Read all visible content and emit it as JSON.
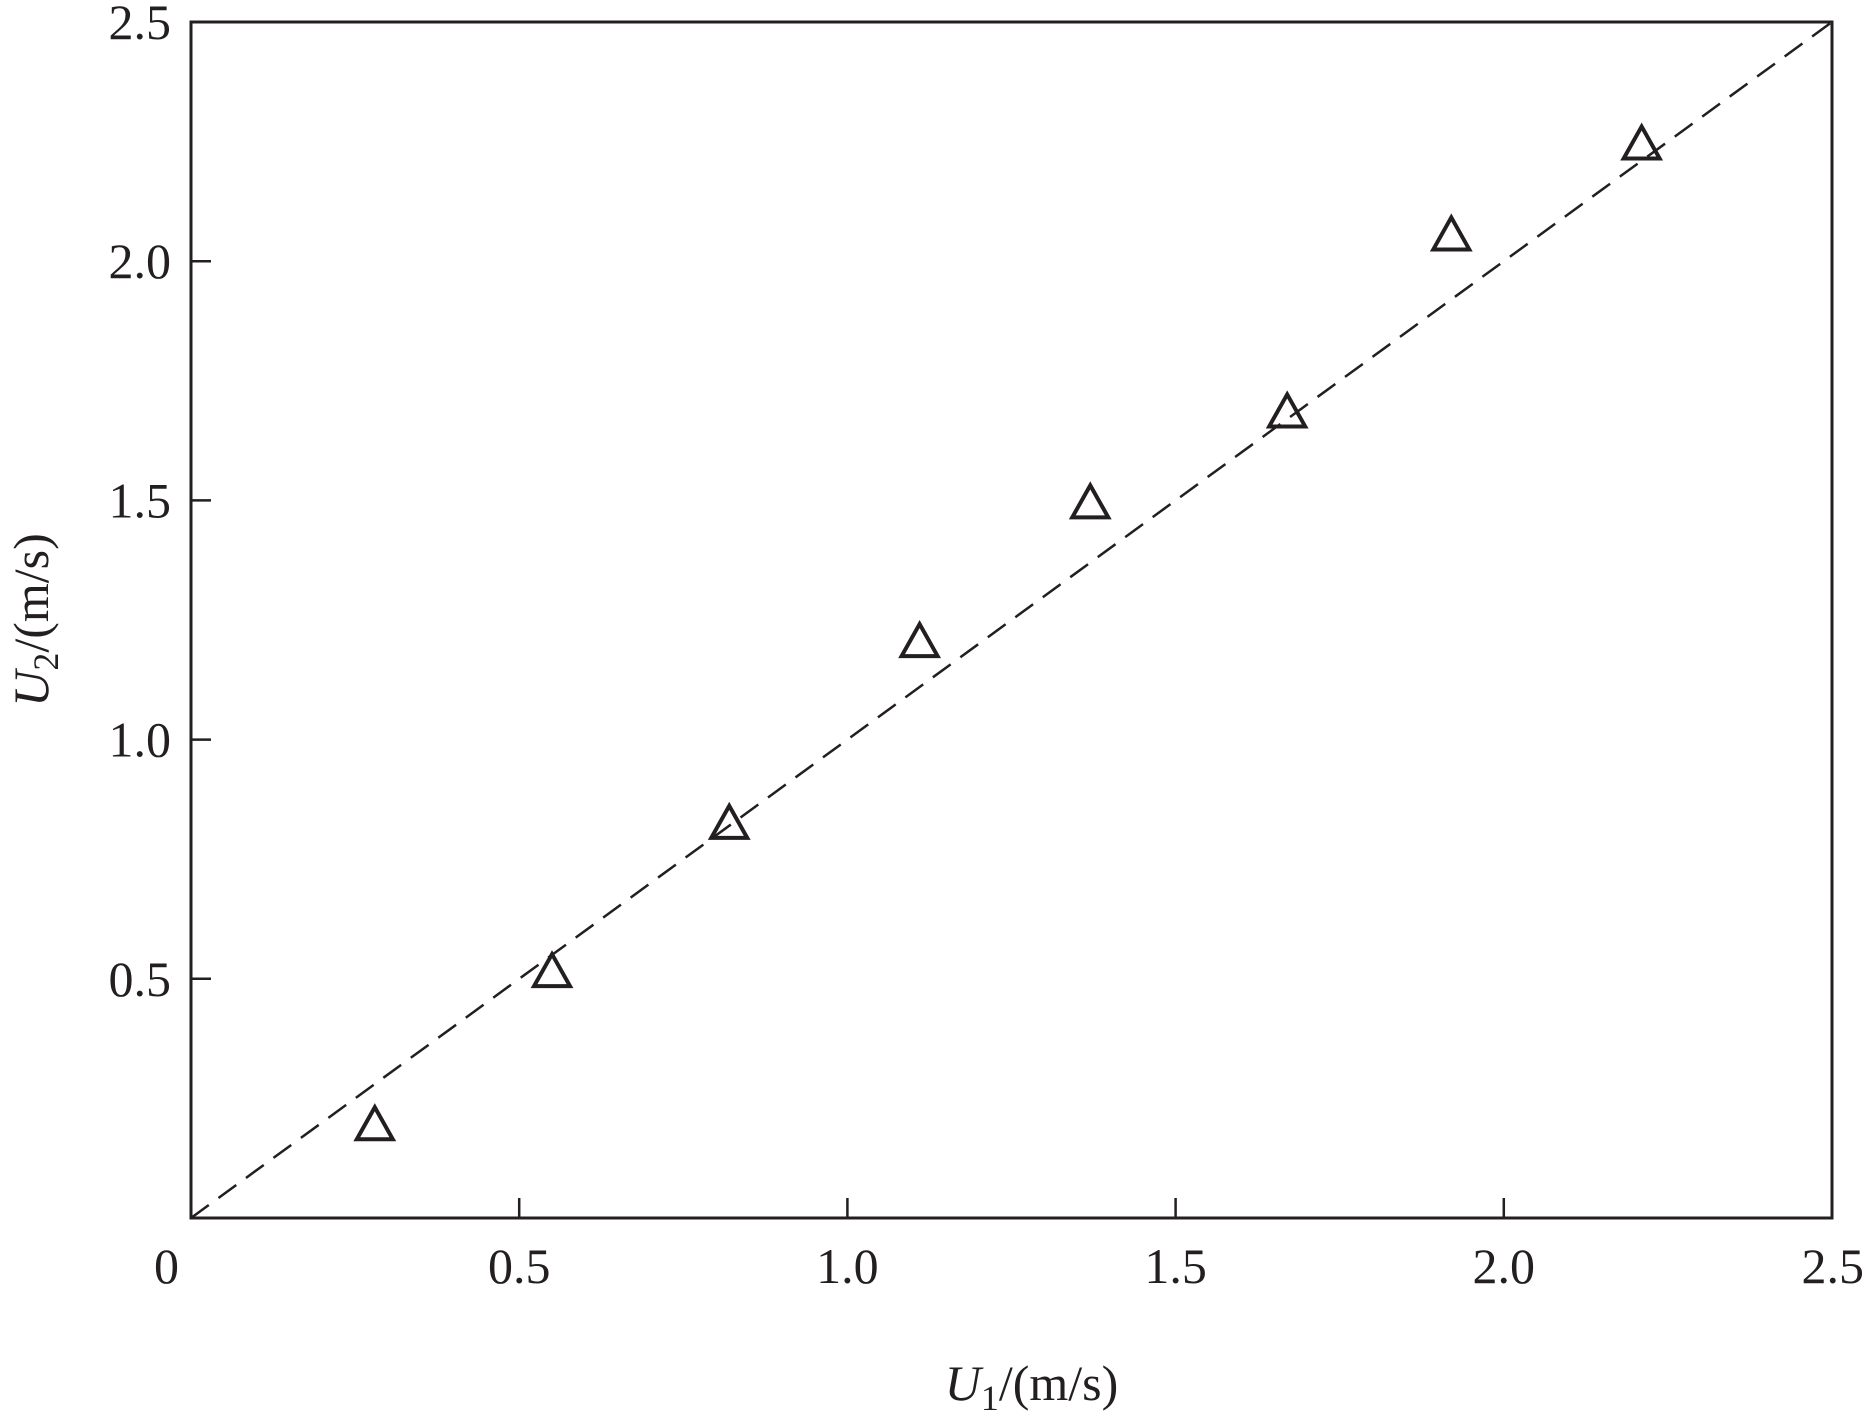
{
  "chart_data": {
    "type": "scatter",
    "title": "",
    "xlabel": {
      "symbol": "U",
      "subscript": "1",
      "unit": "/(m/s)"
    },
    "ylabel": {
      "symbol": "U",
      "subscript": "2",
      "unit": "/(m/s)"
    },
    "xlim": [
      0,
      2.5
    ],
    "ylim": [
      0,
      2.5
    ],
    "x_ticks": [
      {
        "value": 0,
        "label": "0"
      },
      {
        "value": 0.5,
        "label": "0.5"
      },
      {
        "value": 1.0,
        "label": "1.0"
      },
      {
        "value": 1.5,
        "label": "1.5"
      },
      {
        "value": 2.0,
        "label": "2.0"
      },
      {
        "value": 2.5,
        "label": "2.5"
      }
    ],
    "y_ticks": [
      {
        "value": 0.5,
        "label": "0.5"
      },
      {
        "value": 1.0,
        "label": "1.0"
      },
      {
        "value": 1.5,
        "label": "1.5"
      },
      {
        "value": 2.0,
        "label": "2.0"
      },
      {
        "value": 2.5,
        "label": "2.5"
      }
    ],
    "grid": false,
    "legend": "none",
    "marker": "open-triangle",
    "reference_line": {
      "style": "dashed",
      "from": [
        0,
        0
      ],
      "to": [
        2.5,
        2.5
      ]
    },
    "series": [
      {
        "points": [
          {
            "x": 0.28,
            "y": 0.19
          },
          {
            "x": 0.55,
            "y": 0.51
          },
          {
            "x": 0.82,
            "y": 0.82
          },
          {
            "x": 1.11,
            "y": 1.2
          },
          {
            "x": 1.37,
            "y": 1.49
          },
          {
            "x": 1.67,
            "y": 1.68
          },
          {
            "x": 1.92,
            "y": 2.05
          },
          {
            "x": 2.21,
            "y": 2.24
          }
        ]
      }
    ],
    "colors": {
      "ink": "#231f20",
      "background": "#ffffff"
    }
  }
}
